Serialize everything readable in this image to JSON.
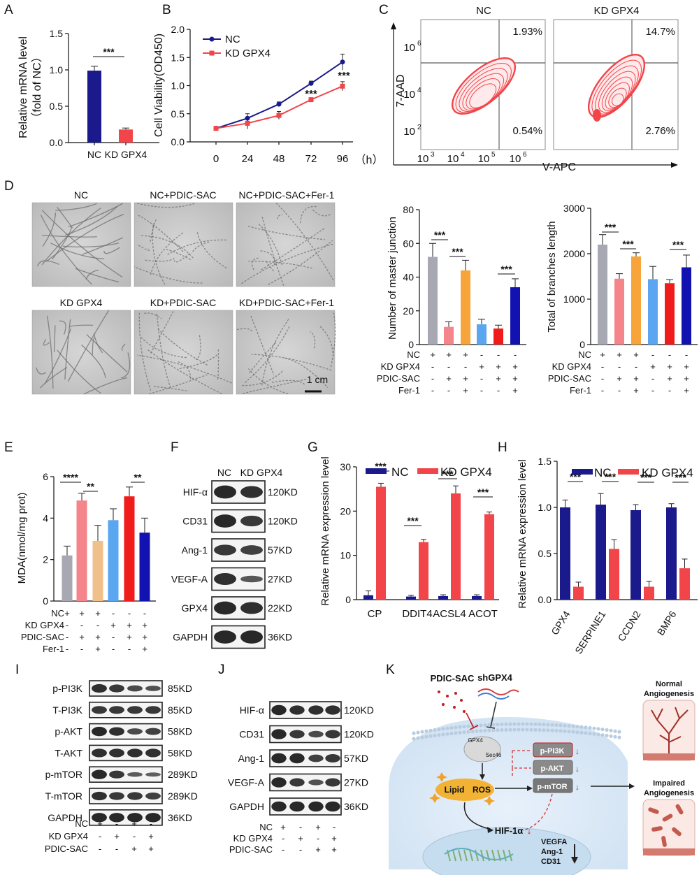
{
  "panels": {
    "A": "A",
    "B": "B",
    "C": "C",
    "D": "D",
    "E": "E",
    "F": "F",
    "G": "G",
    "H": "H",
    "I": "I",
    "J": "J",
    "K": "K"
  },
  "colors": {
    "nc": "#1a1a8c",
    "kd": "#f2454a",
    "gray": "#a8a8b2",
    "pink": "#f4858a",
    "orange": "#f7a43a",
    "lightblue": "#5aa6f0",
    "red": "#f01c1c",
    "navy": "#1212b0",
    "tan": "#f0c08a"
  },
  "chart_data": [
    {
      "panel": "A",
      "type": "bar",
      "categories": [
        "NC",
        "KD GPX4"
      ],
      "values": [
        0.99,
        0.18
      ],
      "errors": [
        0.06,
        0.02
      ],
      "ylabel_1": "Relative mRNA level",
      "ylabel_2": "（fold of NC）",
      "ylim": [
        0,
        1.5
      ],
      "yticks": [
        "0.0",
        "0.5",
        "1.0",
        "1.5"
      ],
      "sig": "***"
    },
    {
      "panel": "B",
      "type": "line",
      "x": [
        0,
        24,
        48,
        72,
        96
      ],
      "xunit": "（h）",
      "ylabel": "Cell Viability(OD450)",
      "ylim": [
        0,
        2.0
      ],
      "yticks": [
        "0.0",
        "0.5",
        "1.0",
        "1.5",
        "2.0"
      ],
      "series": [
        {
          "name": "NC",
          "values": [
            0.24,
            0.42,
            0.67,
            1.04,
            1.42
          ],
          "errors": [
            0.02,
            0.08,
            0.04,
            0.04,
            0.14
          ]
        },
        {
          "name": "KD GPX4",
          "values": [
            0.24,
            0.33,
            0.47,
            0.75,
            0.99
          ],
          "errors": [
            0.02,
            0.1,
            0.07,
            0.02,
            0.08
          ]
        }
      ],
      "sig": [
        "***",
        "***"
      ]
    },
    {
      "panel": "C",
      "type": "scatter",
      "xlabel": "V-APC",
      "ylabel": "7-AAD",
      "xticks": [
        "10",
        "10",
        "10",
        "10"
      ],
      "xtick_exp": [
        "3",
        "4",
        "5",
        "6"
      ],
      "yticks": [
        "10",
        "10",
        "10"
      ],
      "ytick_exp": [
        "2",
        "4",
        "6"
      ],
      "plots": [
        {
          "name": "NC",
          "ul": "",
          "ur": "1.93%",
          "lr": "0.54%"
        },
        {
          "name": "KD GPX4",
          "ul": "",
          "ur": "14.7%",
          "lr": "2.76%"
        }
      ]
    },
    {
      "panel": "D1",
      "type": "bar",
      "ylabel": "Number of master junction",
      "ylim": [
        0,
        80
      ],
      "yticks": [
        "0",
        "20",
        "40",
        "60",
        "80"
      ],
      "values": [
        52,
        10.5,
        44,
        12,
        9.5,
        34
      ],
      "errors": [
        8,
        3,
        6,
        3,
        2,
        5
      ],
      "sig": [
        "***",
        "***",
        "***"
      ]
    },
    {
      "panel": "D2",
      "type": "bar",
      "ylabel": "Total of branches length",
      "ylim": [
        0,
        3000
      ],
      "yticks": [
        "0",
        "1000",
        "2000",
        "3000"
      ],
      "values": [
        2200,
        1450,
        1940,
        1440,
        1350,
        1700
      ],
      "errors": [
        220,
        110,
        80,
        280,
        80,
        270
      ],
      "sig": [
        "***",
        "***",
        "***"
      ]
    },
    {
      "panel": "E",
      "type": "bar",
      "ylabel": "MDA(nmol/mg prot)",
      "ylim": [
        0,
        6
      ],
      "yticks": [
        "0",
        "2",
        "4",
        "6"
      ],
      "values": [
        2.2,
        4.85,
        2.9,
        3.9,
        5.05,
        3.3
      ],
      "errors": [
        0.45,
        0.35,
        0.75,
        0.55,
        0.45,
        0.7
      ],
      "sig": [
        "****",
        "**",
        "**"
      ]
    },
    {
      "panel": "G",
      "type": "bar",
      "categories": [
        "CP",
        "DDIT4",
        "ACSL4",
        "ACOT"
      ],
      "ylabel": "Relative mRNA expression level",
      "ylim": [
        0,
        30
      ],
      "yticks": [
        "0",
        "10",
        "20",
        "30"
      ],
      "series": [
        {
          "name": "NC",
          "values": [
            1.0,
            0.7,
            0.8,
            0.8
          ],
          "errors": [
            1.0,
            0.3,
            0.3,
            0.3
          ]
        },
        {
          "name": "KD GPX4",
          "values": [
            25.5,
            13.0,
            24.0,
            19.3
          ],
          "errors": [
            0.8,
            0.6,
            1.7,
            0.5
          ]
        }
      ],
      "sig": [
        "***",
        "***",
        "***",
        "***"
      ]
    },
    {
      "panel": "H",
      "type": "bar",
      "categories": [
        "GPX4",
        "SERPINE1",
        "CCDN2",
        "BMP6"
      ],
      "ylabel": "Relative mRNA expression level",
      "ylim": [
        0,
        1.5
      ],
      "yticks": [
        "0.0",
        "0.5",
        "1.0",
        "1.5"
      ],
      "series": [
        {
          "name": "NC",
          "values": [
            1.0,
            1.03,
            0.97,
            1.0
          ],
          "errors": [
            0.08,
            0.12,
            0.06,
            0.04
          ]
        },
        {
          "name": "KD GPX4",
          "values": [
            0.14,
            0.55,
            0.14,
            0.34
          ],
          "errors": [
            0.05,
            0.1,
            0.06,
            0.1
          ]
        }
      ],
      "sig": [
        "***",
        "***",
        "***",
        "***"
      ]
    }
  ],
  "cond_D": {
    "rows": [
      {
        "label": "NC",
        "signs": [
          "+",
          "+",
          "+",
          "-",
          "-",
          "-"
        ]
      },
      {
        "label": "KD GPX4",
        "signs": [
          "-",
          "-",
          "-",
          "+",
          "+",
          "+"
        ]
      },
      {
        "label": "PDIC-SAC",
        "signs": [
          "-",
          "+",
          "+",
          "-",
          "+",
          "+"
        ]
      },
      {
        "label": "Fer-1",
        "signs": [
          "-",
          "-",
          "+",
          "-",
          "-",
          "+"
        ]
      }
    ]
  },
  "cond_E": {
    "rows": [
      {
        "label": "NC",
        "signs": [
          "+",
          "+",
          "+",
          "-",
          "-",
          "-"
        ]
      },
      {
        "label": "KD GPX4",
        "signs": [
          "-",
          "-",
          "-",
          "+",
          "+",
          "+"
        ]
      },
      {
        "label": "PDIC-SAC",
        "signs": [
          "-",
          "+",
          "+",
          "-",
          "+",
          "+"
        ]
      },
      {
        "label": "Fer-1",
        "signs": [
          "-",
          "-",
          "+",
          "-",
          "-",
          "+"
        ]
      }
    ]
  },
  "micro": {
    "labels": [
      "NC",
      "NC+PDIC-SAC",
      "NC+PDIC-SAC+Fer-1",
      "KD GPX4",
      "KD+PDIC-SAC",
      "KD+PDIC-SAC+Fer-1"
    ],
    "scale": "1 cm"
  },
  "blotF": {
    "header": [
      "NC",
      "KD GPX4"
    ],
    "rows": [
      {
        "name": "HIF-α",
        "kd": "120KD"
      },
      {
        "name": "CD31",
        "kd": "120KD"
      },
      {
        "name": "Ang-1",
        "kd": "57KD"
      },
      {
        "name": "VEGF-A",
        "kd": "27KD"
      },
      {
        "name": "GPX4",
        "kd": "22KD"
      },
      {
        "name": "GAPDH",
        "kd": "36KD"
      }
    ]
  },
  "blotI": {
    "rows": [
      {
        "name": "p-PI3K",
        "kd": "85KD"
      },
      {
        "name": "T-PI3K",
        "kd": "85KD"
      },
      {
        "name": "p-AKT",
        "kd": "58KD"
      },
      {
        "name": "T-AKT",
        "kd": "58KD"
      },
      {
        "name": "p-mTOR",
        "kd": "289KD"
      },
      {
        "name": "T-mTOR",
        "kd": "289KD"
      },
      {
        "name": "GAPDH",
        "kd": "36KD"
      }
    ],
    "cond": [
      {
        "label": "NC",
        "signs": [
          "+",
          "-",
          "+",
          "-"
        ]
      },
      {
        "label": "KD GPX4",
        "signs": [
          "-",
          "+",
          "-",
          "+"
        ]
      },
      {
        "label": "PDIC-SAC",
        "signs": [
          "-",
          "-",
          "+",
          "+"
        ]
      }
    ]
  },
  "blotJ": {
    "rows": [
      {
        "name": "HIF-α",
        "kd": "120KD"
      },
      {
        "name": "CD31",
        "kd": "120KD"
      },
      {
        "name": "Ang-1",
        "kd": "57KD"
      },
      {
        "name": "VEGF-A",
        "kd": "27KD"
      },
      {
        "name": "GAPDH",
        "kd": "36KD"
      }
    ],
    "cond": [
      {
        "label": "NC",
        "signs": [
          "+",
          "-",
          "+",
          "-"
        ]
      },
      {
        "label": "KD GPX4",
        "signs": [
          "-",
          "+",
          "-",
          "+"
        ]
      },
      {
        "label": "PDIC-SAC",
        "signs": [
          "-",
          "-",
          "+",
          "+"
        ]
      }
    ]
  },
  "schematic": {
    "pdic": "PDIC-SAC",
    "shgpx4": "shGPX4",
    "gpx4": "GPX4",
    "sec46": "Sec46",
    "lipid": "Lipid",
    "ros": "ROS",
    "ppi3k": "p-PI3K",
    "pakt": "p-AKT",
    "pmtor": "p-mTOR",
    "hif": "HIF-1α",
    "vegfa": "VEGFA",
    "ang1": "Ang-1",
    "cd31": "CD31",
    "normal_1": "Normal",
    "normal_2": "Angiogenesis",
    "impaired_1": "Impaired",
    "impaired_2": "Angiogenesis"
  }
}
